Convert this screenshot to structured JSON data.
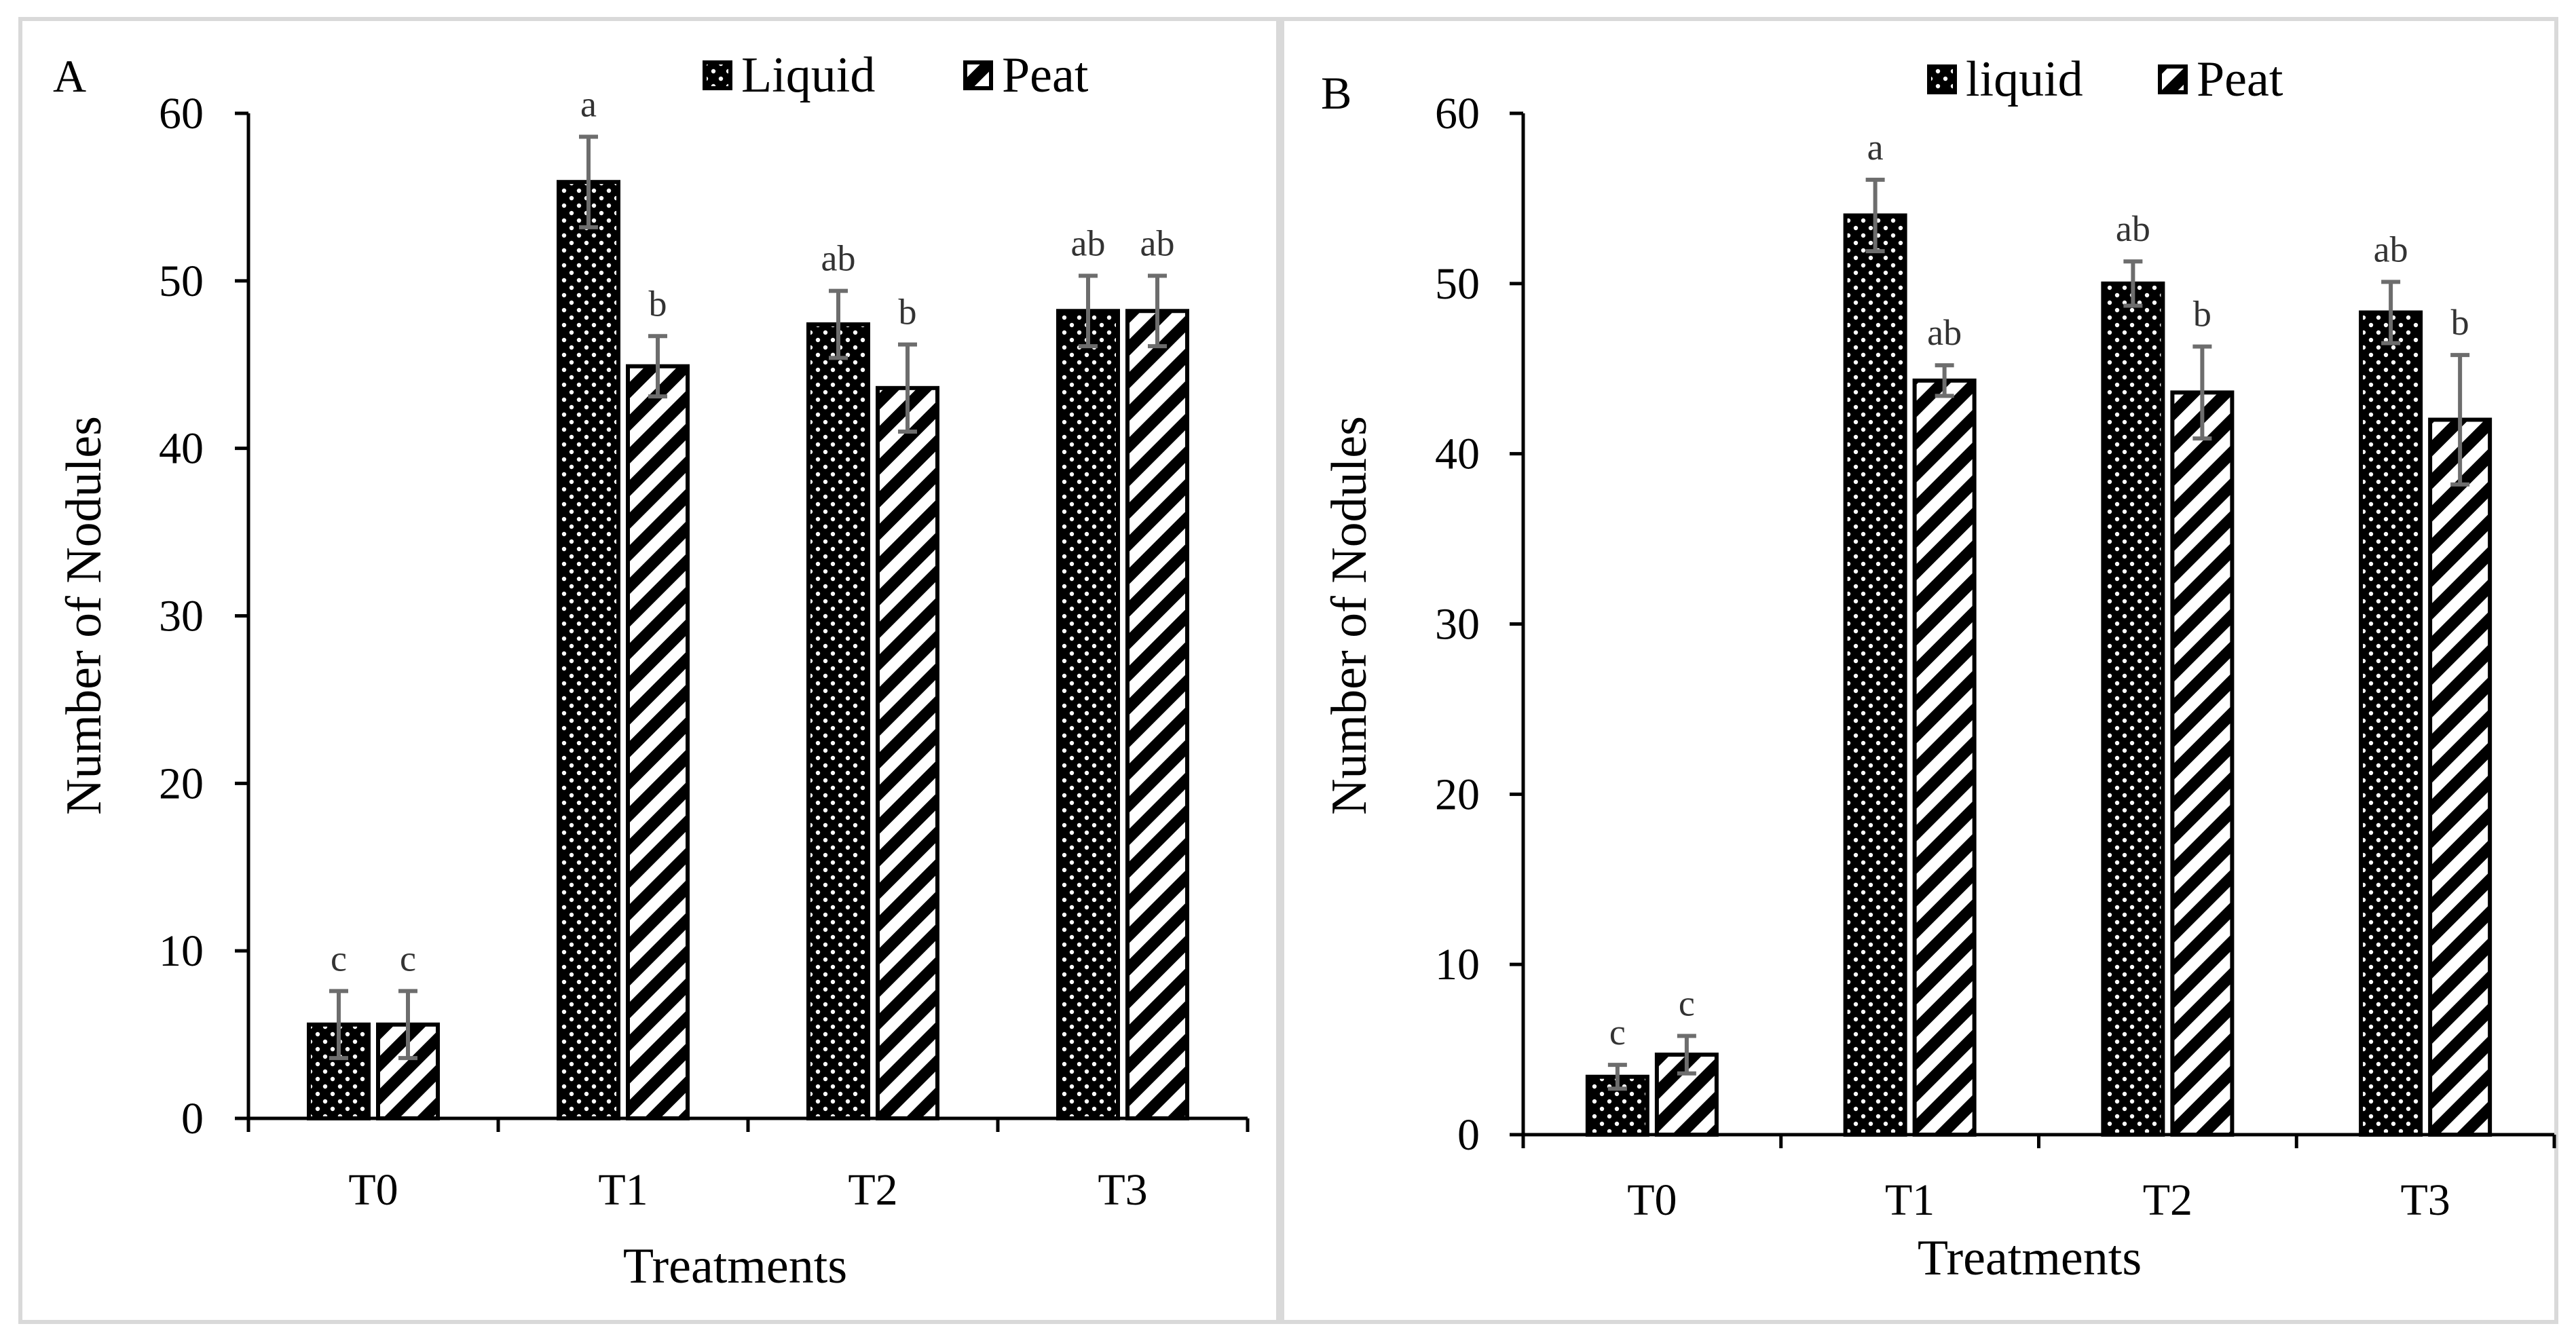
{
  "chart_data": [
    {
      "type": "bar",
      "panel_label": "A",
      "categories": [
        "T0",
        "T1",
        "T2",
        "T3"
      ],
      "series": [
        {
          "name": "Liquid",
          "pattern": "dots",
          "values": [
            5.6,
            55.9,
            47.4,
            48.2
          ],
          "errors": [
            2.0,
            2.7,
            2.0,
            2.1
          ],
          "sig": [
            "c",
            "a",
            "ab",
            "ab"
          ]
        },
        {
          "name": "Peat",
          "pattern": "stripes",
          "values": [
            5.6,
            44.9,
            43.6,
            48.2
          ],
          "errors": [
            2.0,
            1.8,
            2.6,
            2.1
          ],
          "sig": [
            "c",
            "b",
            "b",
            "ab"
          ]
        }
      ],
      "xlabel": "Treatments",
      "ylabel": "Number of  Nodules",
      "ylim": [
        0,
        60
      ],
      "yticks": [
        "0",
        "10",
        "20",
        "30",
        "40",
        "50",
        "60"
      ],
      "grid": false,
      "legend_position": "top"
    },
    {
      "type": "bar",
      "panel_label": "B",
      "categories": [
        "T0",
        "T1",
        "T2",
        "T3"
      ],
      "series": [
        {
          "name": "liquid",
          "pattern": "dots",
          "values": [
            3.4,
            54.0,
            50.0,
            48.3
          ],
          "errors": [
            0.7,
            2.1,
            1.3,
            1.8
          ],
          "sig": [
            "c",
            "a",
            "ab",
            "ab"
          ]
        },
        {
          "name": "Peat",
          "pattern": "stripes",
          "values": [
            4.7,
            44.3,
            43.6,
            42.0
          ],
          "errors": [
            1.1,
            0.9,
            2.7,
            3.8
          ],
          "sig": [
            "c",
            "ab",
            "b",
            "b"
          ]
        }
      ],
      "xlabel": "Treatments",
      "ylabel": "Number of  Nodules",
      "ylim": [
        0,
        60
      ],
      "yticks": [
        "0",
        "10",
        "20",
        "30",
        "40",
        "50",
        "60"
      ],
      "grid": false,
      "legend_position": "top"
    }
  ],
  "colors": {
    "bar_fill": "#000000",
    "dot": "#ffffff",
    "error_bar": "#6d6d6d",
    "frame": "#d9d9d9"
  }
}
